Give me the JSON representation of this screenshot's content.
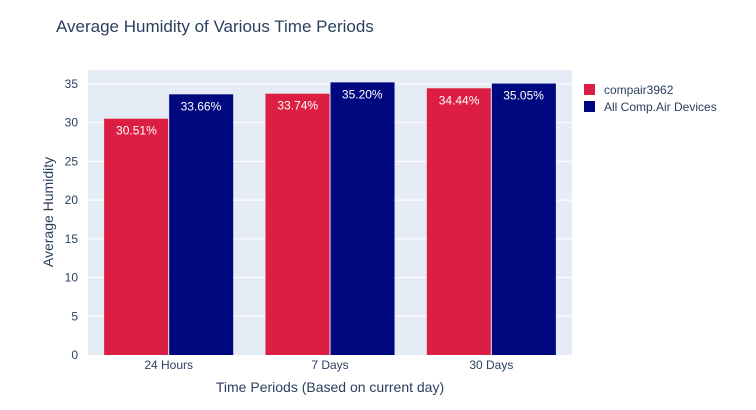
{
  "chart_data": {
    "type": "bar",
    "title": "Average Humidity of Various Time Periods",
    "xlabel": "Time Periods (Based on current day)",
    "ylabel": "Average Humidity",
    "categories": [
      "24 Hours",
      "7 Days",
      "30 Days"
    ],
    "series": [
      {
        "name": "compair3962",
        "values": [
          30.51,
          33.74,
          34.44
        ],
        "labels": [
          "30.51%",
          "33.74%",
          "34.44%"
        ],
        "color": "#dc1e42"
      },
      {
        "name": "All Comp.Air Devices",
        "values": [
          33.66,
          35.2,
          35.05
        ],
        "labels": [
          "33.66%",
          "35.20%",
          "35.05%"
        ],
        "color": "#00087f"
      }
    ],
    "ylim": [
      0,
      36.8
    ],
    "yticks": [
      0,
      5,
      10,
      15,
      20,
      25,
      30,
      35
    ],
    "grid": true,
    "legend_position": "top-right",
    "plot_background": "#e5ecf6",
    "gridline_color": "#ffffff",
    "data_label_color": "#ffffff"
  }
}
